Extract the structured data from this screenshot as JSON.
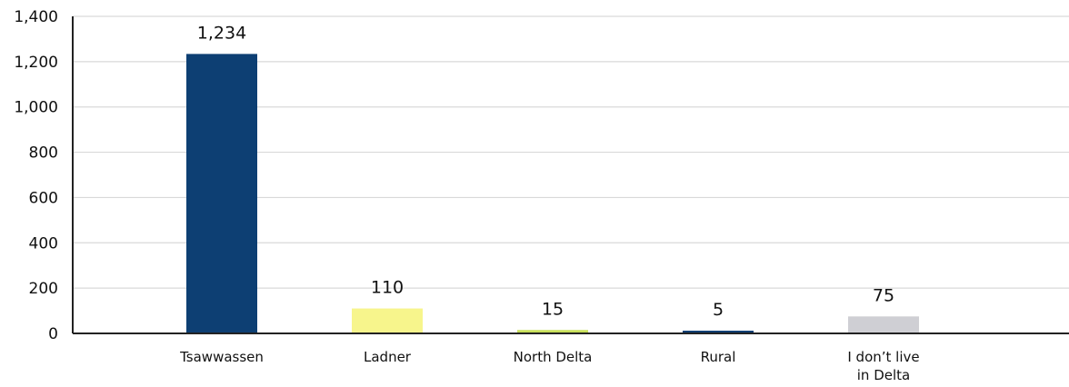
{
  "chart_data": {
    "type": "bar",
    "title": "",
    "xlabel": "",
    "ylabel": "",
    "categories": [
      [
        "Tsawwassen"
      ],
      [
        "Ladner"
      ],
      [
        "North Delta"
      ],
      [
        "Rural"
      ],
      [
        "I don’t live",
        "in Delta"
      ]
    ],
    "values": [
      1234,
      110,
      15,
      5,
      75
    ],
    "data_labels": [
      "1,234",
      "110",
      "15",
      "5",
      "75"
    ],
    "colors": [
      "#0d3f73",
      "#f7f58c",
      "#c8e05a",
      "#0d3f73",
      "#cfcfd4"
    ],
    "ylim": [
      0,
      1400
    ],
    "yticks": [
      0,
      200,
      400,
      600,
      800,
      1000,
      1200,
      1400
    ],
    "ytick_labels": [
      "0",
      "200",
      "400",
      "600",
      "800",
      "1,000",
      "1,200",
      "1,400"
    ],
    "grid": true,
    "legend": "none"
  }
}
